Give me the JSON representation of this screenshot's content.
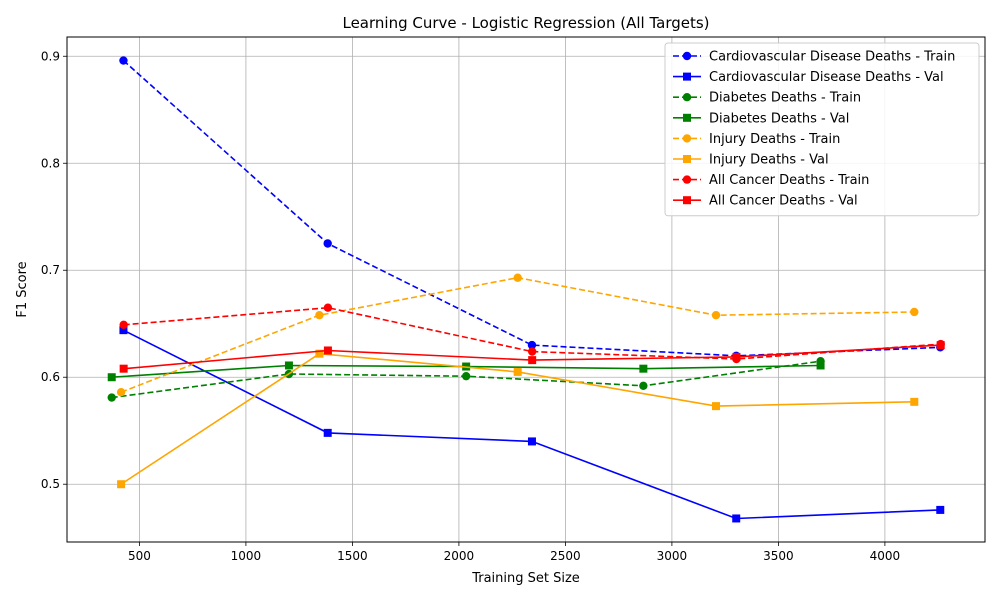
{
  "chart_data": {
    "type": "line",
    "title": "Learning Curve - Logistic Regression (All Targets)",
    "xlabel": "Training Set Size",
    "ylabel": "F1 Score",
    "xlim": [
      160,
      4470
    ],
    "ylim": [
      0.446,
      0.918
    ],
    "xticks": [
      500,
      1000,
      1500,
      2000,
      2500,
      3000,
      3500,
      4000
    ],
    "yticks": [
      0.5,
      0.6,
      0.7,
      0.8,
      0.9
    ],
    "ytick_labels": [
      "0.5",
      "0.6",
      "0.7",
      "0.8",
      "0.9"
    ],
    "grid": true,
    "legend_position": "top-right",
    "series": [
      {
        "name": "Cardiovascular Disease Deaths - Train",
        "color": "#0000ff",
        "linestyle": "dashed",
        "marker": "circle",
        "x": [
          425,
          1384,
          2343,
          3302,
          4260
        ],
        "y": [
          0.896,
          0.725,
          0.63,
          0.62,
          0.628
        ]
      },
      {
        "name": "Cardiovascular Disease Deaths - Val",
        "color": "#0000ff",
        "linestyle": "solid",
        "marker": "square",
        "x": [
          425,
          1384,
          2343,
          3302,
          4260
        ],
        "y": [
          0.644,
          0.548,
          0.54,
          0.468,
          0.476
        ]
      },
      {
        "name": "Diabetes Deaths - Train",
        "color": "#008000",
        "linestyle": "dashed",
        "marker": "circle",
        "x": [
          370,
          1202,
          2034,
          2866,
          3698
        ],
        "y": [
          0.581,
          0.603,
          0.601,
          0.592,
          0.615
        ]
      },
      {
        "name": "Diabetes Deaths - Val",
        "color": "#008000",
        "linestyle": "solid",
        "marker": "square",
        "x": [
          370,
          1202,
          2034,
          2866,
          3698
        ],
        "y": [
          0.6,
          0.611,
          0.61,
          0.608,
          0.611
        ]
      },
      {
        "name": "Injury Deaths - Train",
        "color": "#ffa500",
        "linestyle": "dashed",
        "marker": "circle",
        "x": [
          414,
          1345,
          2276,
          3207,
          4138
        ],
        "y": [
          0.586,
          0.658,
          0.693,
          0.658,
          0.661
        ]
      },
      {
        "name": "Injury Deaths - Val",
        "color": "#ffa500",
        "linestyle": "solid",
        "marker": "square",
        "x": [
          414,
          1345,
          2276,
          3207,
          4138
        ],
        "y": [
          0.5,
          0.622,
          0.605,
          0.573,
          0.577
        ]
      },
      {
        "name": "All Cancer Deaths - Train",
        "color": "#ff0000",
        "linestyle": "dashed",
        "marker": "circle",
        "x": [
          426,
          1385,
          2344,
          3303,
          4262
        ],
        "y": [
          0.649,
          0.665,
          0.624,
          0.617,
          0.631
        ]
      },
      {
        "name": "All Cancer Deaths - Val",
        "color": "#ff0000",
        "linestyle": "solid",
        "marker": "square",
        "x": [
          426,
          1385,
          2344,
          3303,
          4262
        ],
        "y": [
          0.608,
          0.625,
          0.616,
          0.619,
          0.63
        ]
      }
    ]
  }
}
